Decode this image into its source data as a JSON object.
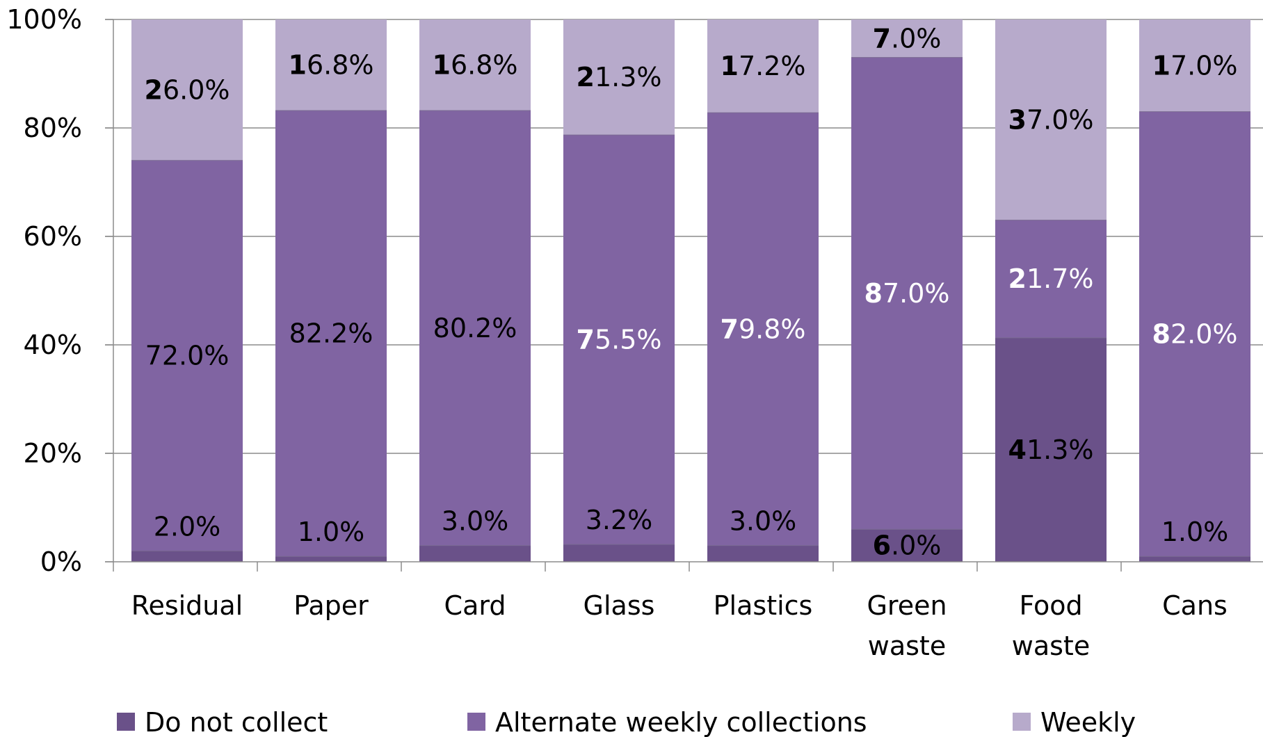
{
  "chart_data": {
    "type": "bar",
    "stacked": true,
    "categories": [
      [
        "Residual"
      ],
      [
        "Paper"
      ],
      [
        "Card"
      ],
      [
        "Glass"
      ],
      [
        "Plastics"
      ],
      [
        "Green",
        "waste"
      ],
      [
        "Food",
        "waste"
      ],
      [
        "Cans"
      ]
    ],
    "series": [
      {
        "name": "Do not collect",
        "color": "#6a5189",
        "values": [
          2.0,
          1.0,
          3.0,
          3.2,
          3.0,
          6.0,
          41.3,
          1.0
        ],
        "labels": [
          "2.0%",
          "1.0%",
          "3.0%",
          "3.2%",
          "3.0%",
          "6.0%",
          "41.3%",
          "1.0%"
        ]
      },
      {
        "name": "Alternate weekly collections",
        "color": "#8064a2",
        "values": [
          72.0,
          82.2,
          80.2,
          75.5,
          79.8,
          87.0,
          21.7,
          82.0
        ],
        "labels": [
          "72.0%",
          "82.2%",
          "80.2%",
          "75.5%",
          "79.8%",
          "87.0%",
          "21.7%",
          "82.0%"
        ]
      },
      {
        "name": "Weekly",
        "color": "#b7aacb",
        "values": [
          26.0,
          16.8,
          16.8,
          21.3,
          17.2,
          7.0,
          37.0,
          17.0
        ],
        "labels": [
          "26.0%",
          "16.8%",
          "16.8%",
          "21.3%",
          "17.2%",
          "7.0%",
          "37.0%",
          "17.0%"
        ]
      }
    ],
    "yticks": [
      "0%",
      "20%",
      "40%",
      "60%",
      "80%",
      "100%"
    ],
    "ylim": [
      0,
      100
    ],
    "grid": true,
    "legend_position": "bottom"
  }
}
